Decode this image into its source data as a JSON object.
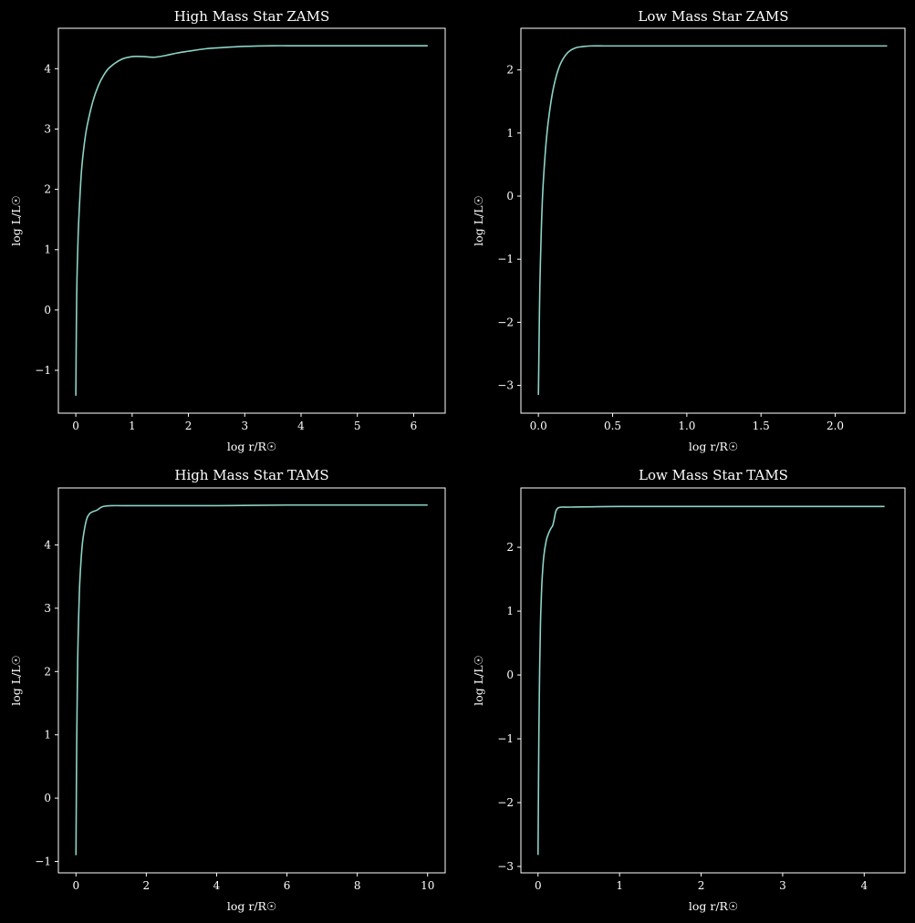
{
  "style": {
    "background": "#000000",
    "foreground": "#ffffff",
    "line_color": "#8dd3c7"
  },
  "chart_data": [
    {
      "type": "line",
      "title": "High Mass Star ZAMS",
      "xlabel": "log r/R☉",
      "ylabel": "log L/L☉",
      "xlim": [
        -0.31,
        6.56
      ],
      "ylim": [
        -1.71,
        4.67
      ],
      "xticks": [
        0,
        1,
        2,
        3,
        4,
        5,
        6
      ],
      "yticks": [
        -1,
        0,
        1,
        2,
        3,
        4
      ],
      "x": [
        0,
        0.01,
        0.02,
        0.04,
        0.06,
        0.1,
        0.15,
        0.2,
        0.3,
        0.4,
        0.5,
        0.6,
        0.8,
        1.0,
        1.2,
        1.4,
        1.6,
        1.8,
        2.0,
        2.3,
        2.6,
        3.0,
        3.5,
        4.0,
        5.0,
        6.25
      ],
      "y": [
        -1.42,
        -0.2,
        0.5,
        1.2,
        1.65,
        2.3,
        2.75,
        3.05,
        3.45,
        3.72,
        3.9,
        4.02,
        4.15,
        4.2,
        4.2,
        4.19,
        4.22,
        4.26,
        4.29,
        4.33,
        4.35,
        4.37,
        4.38,
        4.38,
        4.38,
        4.38
      ]
    },
    {
      "type": "line",
      "title": "Low Mass Star ZAMS",
      "xlabel": "log r/R☉",
      "ylabel": "log L/L☉",
      "xlim": [
        -0.118,
        2.47
      ],
      "ylim": [
        -3.44,
        2.66
      ],
      "xticks": [
        0.0,
        0.5,
        1.0,
        1.5,
        2.0
      ],
      "yticks": [
        -3,
        -2,
        -1,
        0,
        1,
        2
      ],
      "x": [
        0,
        0.005,
        0.01,
        0.02,
        0.03,
        0.045,
        0.06,
        0.08,
        0.1,
        0.13,
        0.16,
        0.2,
        0.25,
        0.3,
        0.35,
        0.45,
        0.6,
        1.0,
        1.5,
        2.0,
        2.35
      ],
      "y": [
        -3.15,
        -2.2,
        -1.4,
        -0.5,
        0.1,
        0.65,
        1.05,
        1.42,
        1.7,
        1.98,
        2.15,
        2.28,
        2.35,
        2.37,
        2.38,
        2.38,
        2.38,
        2.38,
        2.38,
        2.38,
        2.38
      ]
    },
    {
      "type": "line",
      "title": "High Mass Star TAMS",
      "xlabel": "log r/R☉",
      "ylabel": "log L/L☉",
      "xlim": [
        -0.5,
        10.5
      ],
      "ylim": [
        -1.18,
        4.9
      ],
      "xticks": [
        0,
        2,
        4,
        6,
        8,
        10
      ],
      "yticks": [
        -1,
        0,
        1,
        2,
        3,
        4
      ],
      "x": [
        0,
        0.01,
        0.02,
        0.04,
        0.06,
        0.1,
        0.15,
        0.2,
        0.3,
        0.4,
        0.5,
        0.6,
        0.7,
        0.8,
        1.0,
        1.5,
        2.0,
        4.0,
        6.0,
        8.0,
        10.0
      ],
      "y": [
        -0.9,
        0.0,
        0.8,
        1.8,
        2.5,
        3.3,
        3.8,
        4.1,
        4.4,
        4.5,
        4.53,
        4.55,
        4.59,
        4.61,
        4.62,
        4.62,
        4.62,
        4.62,
        4.63,
        4.63,
        4.63
      ]
    },
    {
      "type": "line",
      "title": "Low Mass Star TAMS",
      "xlabel": "log r/R☉",
      "ylabel": "log L/L☉",
      "xlim": [
        -0.21,
        4.5
      ],
      "ylim": [
        -3.1,
        2.93
      ],
      "xticks": [
        0,
        1,
        2,
        3,
        4
      ],
      "yticks": [
        -3,
        -2,
        -1,
        0,
        1,
        2
      ],
      "x": [
        0,
        0.005,
        0.01,
        0.02,
        0.03,
        0.04,
        0.05,
        0.07,
        0.1,
        0.13,
        0.16,
        0.18,
        0.2,
        0.22,
        0.25,
        0.3,
        0.4,
        1.0,
        2.0,
        3.0,
        4.25
      ],
      "y": [
        -2.82,
        -1.9,
        -1.0,
        0.1,
        0.8,
        1.2,
        1.5,
        1.85,
        2.1,
        2.22,
        2.3,
        2.34,
        2.45,
        2.57,
        2.62,
        2.63,
        2.63,
        2.64,
        2.64,
        2.64,
        2.64
      ]
    }
  ]
}
